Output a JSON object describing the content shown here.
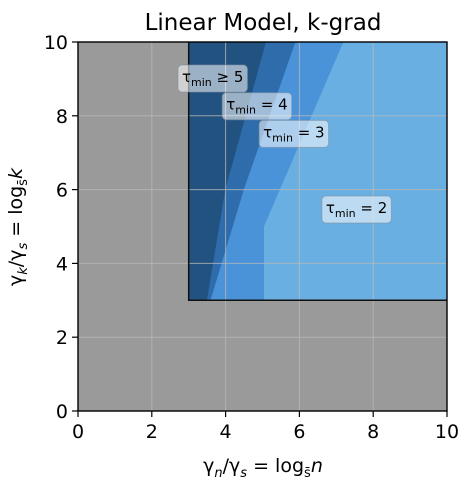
{
  "chart_data": {
    "type": "area",
    "title": "Linear Model, k-grad",
    "xlabel": "γn/γs = logs̄n",
    "ylabel": "γk/γs = logs̄k",
    "xlim": [
      0,
      10
    ],
    "ylim": [
      0,
      10
    ],
    "xticks": [
      0,
      2,
      4,
      6,
      8,
      10
    ],
    "yticks": [
      0,
      2,
      4,
      6,
      8,
      10
    ],
    "grid": true,
    "background_color": "#9a9a9a",
    "feasible_box": {
      "x_min": 3,
      "x_max": 10,
      "y_min": 3,
      "y_max": 10
    },
    "regions": [
      {
        "label": "τmin ≥ 5",
        "tau": 5,
        "color": "#22527f",
        "polygon": [
          [
            3,
            3
          ],
          [
            3.5,
            3
          ],
          [
            4,
            6
          ],
          [
            5.1,
            10
          ],
          [
            3,
            10
          ]
        ]
      },
      {
        "label": "τmin = 4",
        "tau": 4,
        "color": "#2e6cab",
        "polygon": [
          [
            3.5,
            3
          ],
          [
            3.6,
            3
          ],
          [
            4.5,
            6
          ],
          [
            5.9,
            10
          ],
          [
            5.1,
            10
          ],
          [
            4,
            6
          ]
        ]
      },
      {
        "label": "τmin = 3",
        "tau": 3,
        "color": "#4a93d8",
        "polygon": [
          [
            3.6,
            3
          ],
          [
            5.05,
            3
          ],
          [
            5.05,
            5
          ],
          [
            7.2,
            10
          ],
          [
            5.9,
            10
          ],
          [
            4.5,
            6
          ]
        ]
      },
      {
        "label": "τmin = 2",
        "tau": 2,
        "color": "#6aafe2",
        "polygon": [
          [
            5.05,
            3
          ],
          [
            10,
            3
          ],
          [
            10,
            10
          ],
          [
            7.2,
            10
          ],
          [
            5.05,
            5
          ]
        ]
      }
    ],
    "annotations": [
      {
        "text": "τmin ≥ 5",
        "sub": "min",
        "base": "τ",
        "rel": " ≥ 5",
        "x": 3.65,
        "y": 9.05
      },
      {
        "text": "τmin = 4",
        "sub": "min",
        "base": "τ",
        "rel": " = 4",
        "x": 4.85,
        "y": 8.3
      },
      {
        "text": "τmin = 3",
        "sub": "min",
        "base": "τ",
        "rel": " = 3",
        "x": 5.85,
        "y": 7.55
      },
      {
        "text": "τmin = 2",
        "sub": "min",
        "base": "τ",
        "rel": " = 2",
        "x": 7.55,
        "y": 5.5
      }
    ]
  }
}
